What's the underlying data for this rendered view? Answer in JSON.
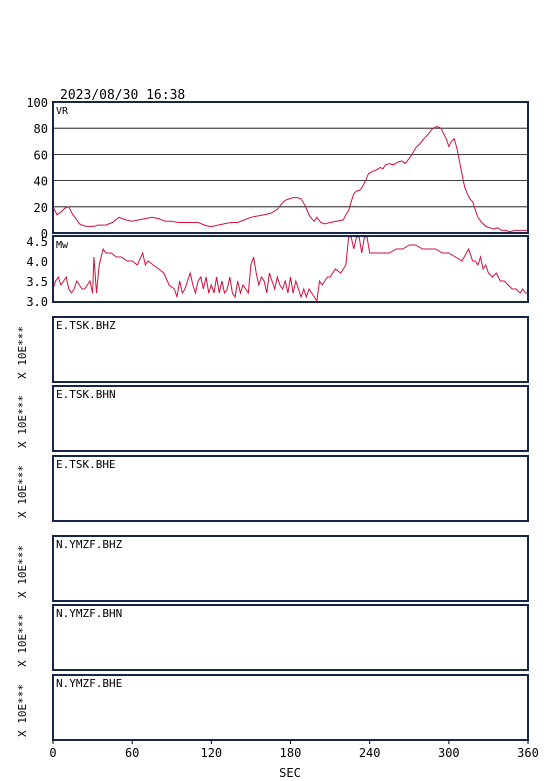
{
  "header": {
    "datetime": "2023/08/30  16:38"
  },
  "colors": {
    "series": "#d0103a",
    "frame": "#16264a",
    "grid": "#000000"
  },
  "chart_data": [
    {
      "type": "line",
      "label": "VR",
      "ylim": [
        0,
        100
      ],
      "yticks": [
        "0",
        "20",
        "40",
        "60",
        "80",
        "100"
      ],
      "ytick_values": [
        0,
        20,
        40,
        60,
        80,
        100
      ],
      "grid": true,
      "x": [
        0,
        3,
        6,
        9,
        12,
        15,
        18,
        20,
        22,
        25,
        28,
        31,
        34,
        37,
        40,
        45,
        50,
        55,
        60,
        65,
        70,
        75,
        80,
        85,
        90,
        95,
        100,
        105,
        110,
        115,
        118,
        121,
        125,
        130,
        135,
        140,
        145,
        150,
        155,
        160,
        165,
        170,
        173,
        176,
        179,
        182,
        185,
        188,
        191,
        194,
        196,
        198,
        200,
        203,
        206,
        210,
        215,
        220,
        222,
        224,
        226,
        228,
        230,
        233,
        236,
        239,
        242,
        245,
        248,
        250,
        252,
        255,
        258,
        261,
        264,
        267,
        270,
        272,
        275,
        278,
        281,
        284,
        287,
        290,
        292,
        294,
        296,
        298,
        300,
        302,
        304,
        306,
        308,
        310,
        312,
        314,
        316,
        318,
        320,
        322,
        325,
        328,
        331,
        334,
        337,
        340,
        343,
        346,
        350,
        354,
        358,
        360
      ],
      "y": [
        20,
        14,
        16,
        19,
        20,
        14,
        10,
        7,
        6,
        5,
        5,
        5,
        6,
        6,
        6,
        8,
        12,
        10,
        9,
        10,
        11,
        12,
        11,
        9,
        9,
        8,
        8,
        8,
        8,
        6,
        5,
        5,
        6,
        7,
        8,
        8,
        10,
        12,
        13,
        14,
        15,
        18,
        22,
        25,
        26,
        27,
        27,
        26,
        21,
        14,
        11,
        9,
        12,
        8,
        7,
        8,
        9,
        10,
        14,
        17,
        24,
        30,
        32,
        33,
        38,
        45,
        47,
        48,
        50,
        49,
        52,
        53,
        52,
        54,
        55,
        53,
        57,
        60,
        65,
        68,
        72,
        75,
        79,
        81,
        81,
        80,
        76,
        72,
        66,
        70,
        72,
        65,
        55,
        45,
        35,
        30,
        26,
        24,
        18,
        12,
        8,
        5,
        4,
        3,
        4,
        2,
        2,
        1,
        2,
        2,
        2,
        2
      ]
    },
    {
      "type": "line",
      "label": "Mw",
      "ylim": [
        3.0,
        4.5
      ],
      "yticks": [
        "3.0",
        "3.5",
        "4.0",
        "4.5"
      ],
      "ytick_values": [
        3.0,
        3.5,
        4.0,
        4.5
      ],
      "grid": false,
      "x": [
        0,
        2,
        4,
        6,
        8,
        10,
        12,
        14,
        16,
        18,
        20,
        22,
        24,
        26,
        28,
        30,
        31,
        33,
        35,
        38,
        40,
        44,
        48,
        52,
        56,
        60,
        64,
        68,
        70,
        72,
        76,
        80,
        84,
        88,
        92,
        94,
        96,
        98,
        100,
        102,
        104,
        106,
        108,
        110,
        112,
        114,
        116,
        118,
        120,
        122,
        124,
        126,
        128,
        130,
        132,
        134,
        136,
        138,
        140,
        142,
        144,
        146,
        148,
        150,
        152,
        154,
        156,
        158,
        160,
        162,
        164,
        166,
        168,
        170,
        172,
        174,
        176,
        178,
        180,
        182,
        184,
        186,
        188,
        190,
        192,
        194,
        196,
        198,
        200,
        202,
        204,
        206,
        208,
        210,
        214,
        218,
        222,
        224,
        226,
        228,
        230,
        232,
        234,
        236,
        238,
        240,
        242,
        246,
        250,
        255,
        260,
        265,
        270,
        275,
        280,
        285,
        290,
        295,
        300,
        305,
        310,
        315,
        318,
        320,
        322,
        324,
        326,
        328,
        330,
        333,
        336,
        339,
        342,
        345,
        348,
        351,
        354,
        356,
        358,
        360
      ],
      "y": [
        3.3,
        3.5,
        3.6,
        3.4,
        3.5,
        3.6,
        3.3,
        3.2,
        3.3,
        3.5,
        3.4,
        3.3,
        3.3,
        3.4,
        3.5,
        3.2,
        4.1,
        3.2,
        3.9,
        4.3,
        4.2,
        4.2,
        4.1,
        4.1,
        4.0,
        4.0,
        3.9,
        4.2,
        3.9,
        4.0,
        3.9,
        3.8,
        3.7,
        3.4,
        3.3,
        3.1,
        3.5,
        3.2,
        3.3,
        3.5,
        3.7,
        3.4,
        3.2,
        3.5,
        3.6,
        3.3,
        3.6,
        3.2,
        3.4,
        3.2,
        3.6,
        3.2,
        3.5,
        3.2,
        3.3,
        3.6,
        3.2,
        3.1,
        3.5,
        3.2,
        3.4,
        3.3,
        3.2,
        3.9,
        4.1,
        3.7,
        3.4,
        3.6,
        3.5,
        3.2,
        3.7,
        3.5,
        3.3,
        3.6,
        3.4,
        3.3,
        3.5,
        3.2,
        3.6,
        3.2,
        3.5,
        3.3,
        3.1,
        3.3,
        3.1,
        3.3,
        3.2,
        3.1,
        3.0,
        3.5,
        3.4,
        3.5,
        3.6,
        3.6,
        3.8,
        3.7,
        3.9,
        4.6,
        4.6,
        4.3,
        4.6,
        4.6,
        4.2,
        4.6,
        4.6,
        4.2,
        4.2,
        4.2,
        4.2,
        4.2,
        4.3,
        4.3,
        4.4,
        4.4,
        4.3,
        4.3,
        4.3,
        4.2,
        4.2,
        4.1,
        4.0,
        4.3,
        4.0,
        4.0,
        3.9,
        4.1,
        3.8,
        3.9,
        3.7,
        3.6,
        3.7,
        3.5,
        3.5,
        3.4,
        3.3,
        3.3,
        3.2,
        3.3,
        3.2,
        3.2
      ],
      "clip_top": 4.6
    }
  ],
  "waveforms": {
    "scale_label": "X 10E***",
    "stations": [
      "E.TSK.BHZ",
      "E.TSK.BHN",
      "E.TSK.BHE",
      "N.YMZF.BHZ",
      "N.YMZF.BHN",
      "N.YMZF.BHE"
    ]
  },
  "x_axis": {
    "xlim": [
      0,
      360
    ],
    "ticks": [
      "0",
      "60",
      "120",
      "180",
      "240",
      "300",
      "360"
    ],
    "tick_values": [
      0,
      60,
      120,
      180,
      240,
      300,
      360
    ],
    "label": "SEC"
  }
}
